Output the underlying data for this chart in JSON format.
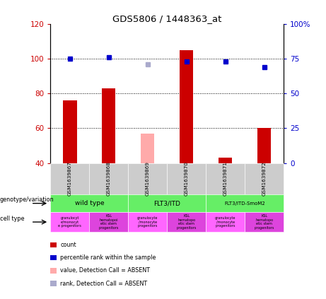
{
  "title": "GDS5806 / 1448363_at",
  "samples": [
    "GSM1639867",
    "GSM1639868",
    "GSM1639869",
    "GSM1639870",
    "GSM1639871",
    "GSM1639872"
  ],
  "bar_values": [
    76,
    83,
    null,
    105,
    43,
    60
  ],
  "bar_color_present": "#cc0000",
  "bar_color_absent": "#ffaaaa",
  "bar_absent_value": 57,
  "rank_values": [
    75,
    76,
    null,
    73,
    73,
    69
  ],
  "rank_absent_value": 71,
  "rank_absent_index": 2,
  "ylim_left": [
    40,
    120
  ],
  "ylim_right": [
    0,
    100
  ],
  "yticks_left": [
    40,
    60,
    80,
    100,
    120
  ],
  "yticks_right": [
    0,
    25,
    50,
    75,
    100
  ],
  "ytick_labels_left": [
    "40",
    "60",
    "80",
    "100",
    "120"
  ],
  "ytick_labels_right": [
    "0",
    "25",
    "50",
    "75",
    "100%"
  ],
  "left_axis_color": "#cc0000",
  "right_axis_color": "#0000cc",
  "genotype_groups": [
    {
      "label": "wild type",
      "start": 0,
      "end": 1
    },
    {
      "label": "FLT3/ITD",
      "start": 2,
      "end": 3
    },
    {
      "label": "FLT3/ITD-SmoM2",
      "start": 4,
      "end": 5
    }
  ],
  "genotype_color": "#66ee66",
  "ct_labels": [
    "granulocyt\ne/monocyt\ne progenitors",
    "KSL\nhematopoi\netic stem\nprogenitors",
    "granulocyte\n/monocyte\nprogenitors",
    "KSL\nhematopo\netic stem\nprogenitors",
    "granulocyte\n/monocyte\nprogenitors",
    "KSL\nhematopo\netic stem\nprogenitors"
  ],
  "ct_colors": [
    "#ff66ff",
    "#dd44dd",
    "#ff66ff",
    "#dd44dd",
    "#ff66ff",
    "#dd44dd"
  ],
  "legend_items": [
    {
      "label": "count",
      "color": "#cc0000"
    },
    {
      "label": "percentile rank within the sample",
      "color": "#0000cc"
    },
    {
      "label": "value, Detection Call = ABSENT",
      "color": "#ffaaaa"
    },
    {
      "label": "rank, Detection Call = ABSENT",
      "color": "#aaaacc"
    }
  ],
  "bar_width": 0.35,
  "bg_color": "#ffffff",
  "sample_bg_color": "#cccccc"
}
